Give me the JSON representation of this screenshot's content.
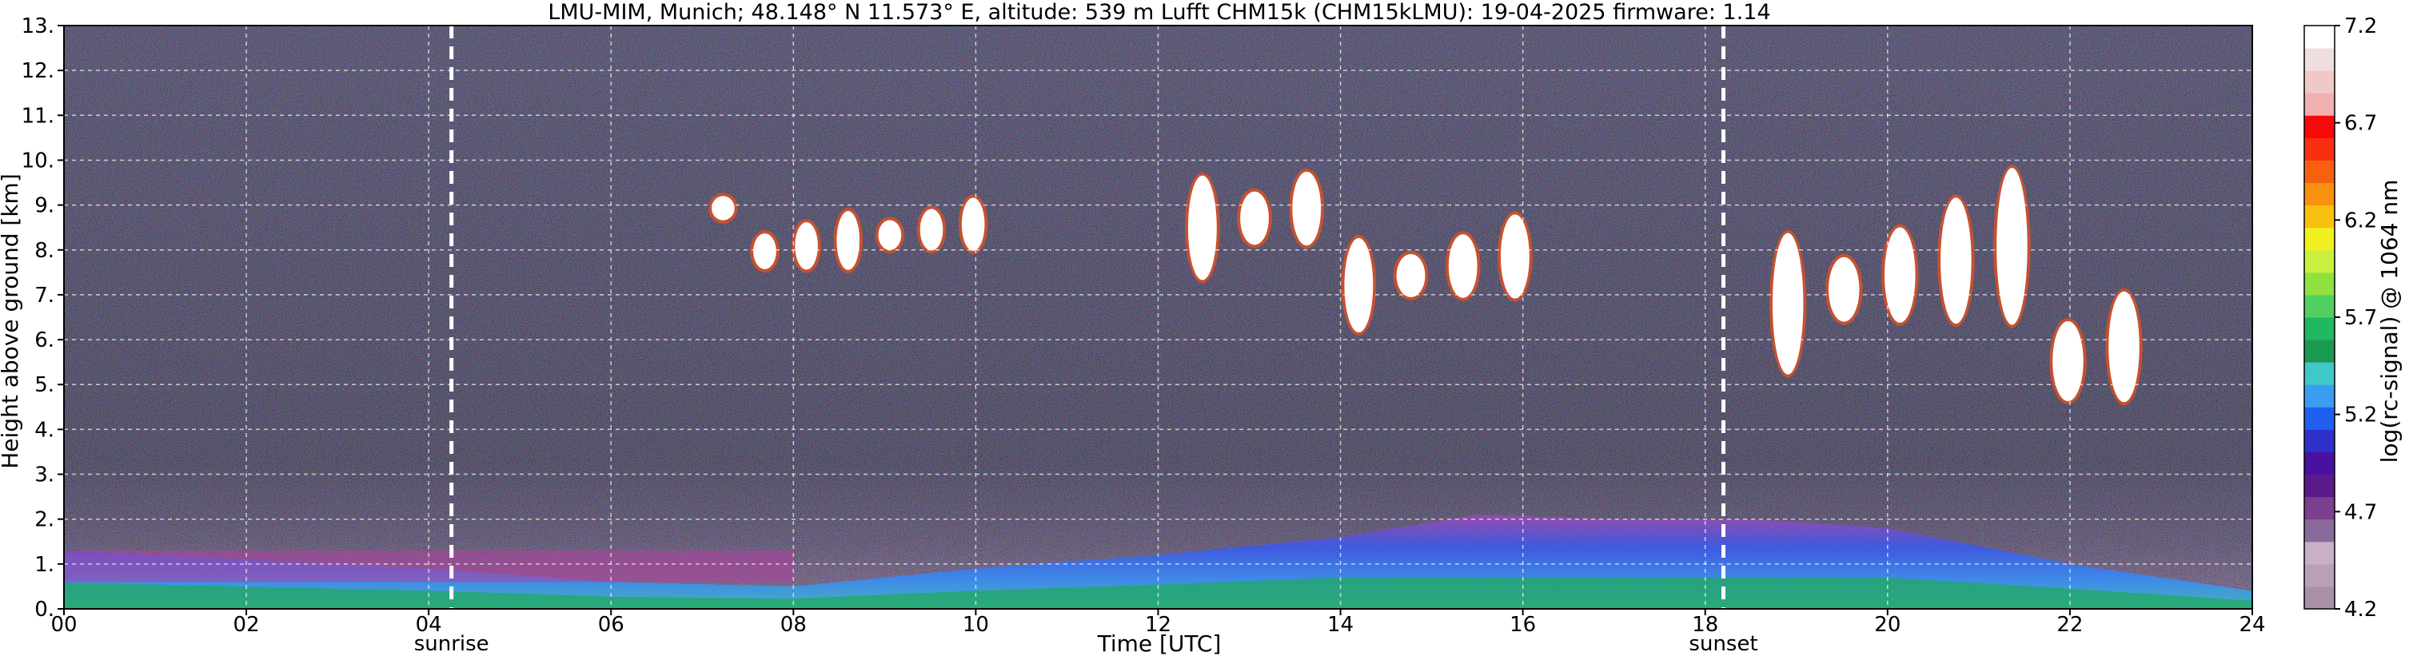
{
  "chart_data": {
    "type": "heatmap",
    "title": "LMU-MIM, Munich; 48.148° N 11.573° E, altitude: 539 m    Lufft CHM15k (CHM15kLMU): 19-04-2025    firmware: 1.14",
    "xlabel": "Time [UTC]",
    "ylabel": "Height above ground [km]",
    "xlim": [
      0,
      24
    ],
    "ylim": [
      0,
      13
    ],
    "x_ticks": [
      "00",
      "02",
      "04",
      "06",
      "08",
      "10",
      "12",
      "14",
      "16",
      "18",
      "20",
      "22",
      "24"
    ],
    "y_ticks": [
      "0.",
      "1.",
      "2.",
      "3.",
      "4.",
      "5.",
      "6.",
      "7.",
      "8.",
      "9.",
      "10.",
      "11.",
      "12.",
      "13."
    ],
    "grid": true,
    "markers": [
      {
        "label": "sunrise",
        "x": 4.25
      },
      {
        "label": "sunset",
        "x": 18.2
      }
    ],
    "colorbar": {
      "label": "log(rc-signal) @ 1064 nm",
      "range": [
        4.2,
        7.2
      ],
      "ticks": [
        "4.2",
        "4.7",
        "5.2",
        "5.7",
        "6.2",
        "6.7",
        "7.2"
      ],
      "colors": [
        "#a890a8",
        "#b8a0b8",
        "#c8b0c8",
        "#8a6a9a",
        "#7a3f8f",
        "#5a1a8a",
        "#4a10a0",
        "#3030c8",
        "#2060f0",
        "#3a9ef0",
        "#40c8c8",
        "#1a9a50",
        "#20b860",
        "#50d060",
        "#90e040",
        "#c8f040",
        "#f0f020",
        "#f8c010",
        "#f89010",
        "#f86010",
        "#f83010",
        "#f80808",
        "#f0b0b0",
        "#f0c8c8",
        "#f0dede",
        "#ffffff"
      ]
    },
    "cloud_layers": [
      {
        "start": 7.0,
        "end": 10.2,
        "base_km": 7.4,
        "top_km": 9.2
      },
      {
        "start": 12.2,
        "end": 16.2,
        "base_km": 6.2,
        "top_km": 9.4
      },
      {
        "start": 18.6,
        "end": 22.9,
        "base_km": 4.0,
        "top_km": 8.8
      }
    ],
    "boundary_layer": [
      {
        "x": 0,
        "top_km": 1.3
      },
      {
        "x": 2,
        "top_km": 1.1
      },
      {
        "x": 4,
        "top_km": 0.9
      },
      {
        "x": 6,
        "top_km": 0.6
      },
      {
        "x": 8,
        "top_km": 0.5
      },
      {
        "x": 10,
        "top_km": 0.9
      },
      {
        "x": 12,
        "top_km": 1.2
      },
      {
        "x": 14,
        "top_km": 1.6
      },
      {
        "x": 15.5,
        "top_km": 2.1
      },
      {
        "x": 17,
        "top_km": 2.0
      },
      {
        "x": 18.5,
        "top_km": 2.0
      },
      {
        "x": 20,
        "top_km": 1.8
      },
      {
        "x": 22,
        "top_km": 1.0
      },
      {
        "x": 24,
        "top_km": 0.4
      }
    ]
  }
}
